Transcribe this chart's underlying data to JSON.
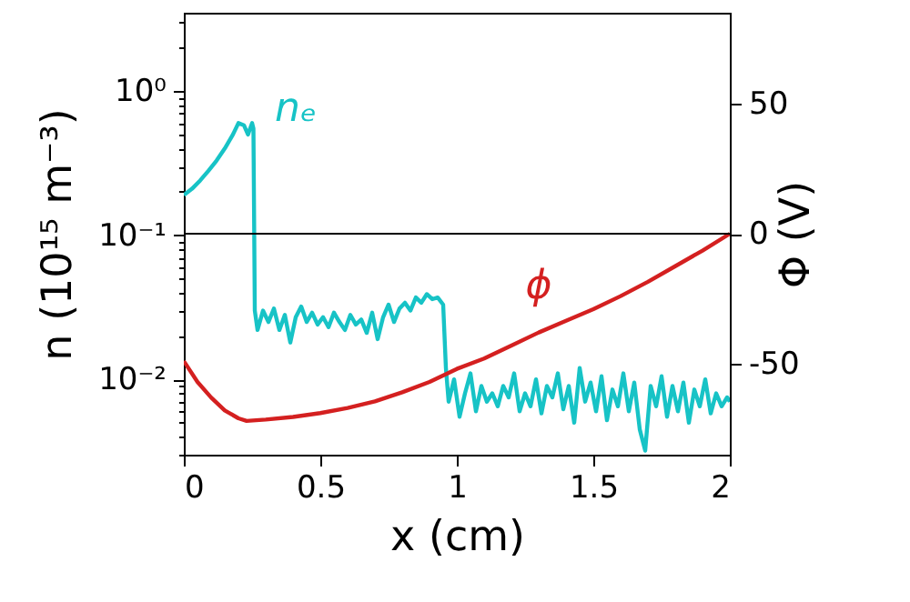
{
  "chart_data": {
    "type": "line",
    "xlabel": "x (cm)",
    "ylabel": "n (10¹⁵ m⁻³)",
    "y2label": "Φ (V)",
    "log": "y",
    "grid": false,
    "xlim": [
      0,
      2
    ],
    "xticks": [
      0,
      0.5,
      1,
      1.5,
      2
    ],
    "ylim": [
      0.003,
      3.5
    ],
    "yticks": [
      {
        "value": 0.003,
        "label": null
      },
      {
        "value": 0.004,
        "label": null
      },
      {
        "value": 0.005,
        "label": null
      },
      {
        "value": 0.006,
        "label": null
      },
      {
        "value": 0.007,
        "label": null
      },
      {
        "value": 0.008,
        "label": null
      },
      {
        "value": 0.009,
        "label": null
      },
      {
        "value": 0.01,
        "label": "10⁻²"
      },
      {
        "value": 0.02,
        "label": null
      },
      {
        "value": 0.03,
        "label": null
      },
      {
        "value": 0.04,
        "label": null
      },
      {
        "value": 0.05,
        "label": null
      },
      {
        "value": 0.06,
        "label": null
      },
      {
        "value": 0.07,
        "label": null
      },
      {
        "value": 0.08,
        "label": null
      },
      {
        "value": 0.09,
        "label": null
      },
      {
        "value": 0.1,
        "label": "10⁻¹"
      },
      {
        "value": 0.2,
        "label": null
      },
      {
        "value": 0.3,
        "label": null
      },
      {
        "value": 0.4,
        "label": null
      },
      {
        "value": 0.5,
        "label": null
      },
      {
        "value": 0.6,
        "label": null
      },
      {
        "value": 0.7,
        "label": null
      },
      {
        "value": 0.8,
        "label": null
      },
      {
        "value": 0.9,
        "label": null
      },
      {
        "value": 1,
        "label": "10⁰"
      },
      {
        "value": 2,
        "label": null
      },
      {
        "value": 3,
        "label": null
      }
    ],
    "y2lim": [
      -85,
      85
    ],
    "y2ticks": [
      -50,
      0,
      50
    ],
    "ref_lines": [
      {
        "axis": "y2",
        "value": 0,
        "color": "#000000"
      }
    ],
    "series": [
      {
        "name": "nₑ",
        "color": "#17c3c6",
        "x": [
          0,
          0.03,
          0.06,
          0.09,
          0.12,
          0.15,
          0.18,
          0.2,
          0.22,
          0.235,
          0.25,
          0.255,
          0.26,
          0.27,
          0.29,
          0.31,
          0.33,
          0.35,
          0.37,
          0.39,
          0.41,
          0.43,
          0.45,
          0.47,
          0.49,
          0.51,
          0.53,
          0.55,
          0.57,
          0.59,
          0.61,
          0.63,
          0.65,
          0.67,
          0.69,
          0.71,
          0.73,
          0.75,
          0.77,
          0.79,
          0.81,
          0.83,
          0.85,
          0.87,
          0.89,
          0.91,
          0.93,
          0.95,
          0.96,
          0.97,
          0.99,
          1.01,
          1.03,
          1.05,
          1.07,
          1.09,
          1.11,
          1.13,
          1.15,
          1.17,
          1.19,
          1.21,
          1.23,
          1.25,
          1.27,
          1.29,
          1.31,
          1.33,
          1.35,
          1.37,
          1.39,
          1.41,
          1.43,
          1.45,
          1.47,
          1.49,
          1.51,
          1.53,
          1.55,
          1.57,
          1.59,
          1.61,
          1.63,
          1.65,
          1.67,
          1.69,
          1.71,
          1.73,
          1.75,
          1.77,
          1.79,
          1.81,
          1.83,
          1.85,
          1.87,
          1.89,
          1.91,
          1.93,
          1.95,
          1.97,
          1.99,
          2.0
        ],
        "values": [
          0.19,
          0.21,
          0.24,
          0.28,
          0.33,
          0.4,
          0.5,
          0.6,
          0.58,
          0.5,
          0.6,
          0.55,
          0.03,
          0.022,
          0.03,
          0.025,
          0.031,
          0.022,
          0.028,
          0.018,
          0.027,
          0.032,
          0.025,
          0.029,
          0.024,
          0.027,
          0.023,
          0.029,
          0.025,
          0.022,
          0.028,
          0.024,
          0.026,
          0.021,
          0.029,
          0.019,
          0.027,
          0.033,
          0.025,
          0.031,
          0.034,
          0.03,
          0.037,
          0.034,
          0.039,
          0.036,
          0.037,
          0.033,
          0.012,
          0.007,
          0.01,
          0.0055,
          0.008,
          0.011,
          0.006,
          0.009,
          0.007,
          0.008,
          0.0065,
          0.009,
          0.0075,
          0.011,
          0.006,
          0.008,
          0.0065,
          0.01,
          0.0058,
          0.009,
          0.0075,
          0.011,
          0.0062,
          0.009,
          0.005,
          0.012,
          0.007,
          0.0095,
          0.006,
          0.0105,
          0.0052,
          0.0085,
          0.0065,
          0.011,
          0.006,
          0.0095,
          0.0045,
          0.0032,
          0.009,
          0.0065,
          0.0105,
          0.0055,
          0.009,
          0.006,
          0.0095,
          0.005,
          0.0085,
          0.0065,
          0.01,
          0.0058,
          0.008,
          0.0065,
          0.0075,
          0.007
        ]
      },
      {
        "name": "ϕ",
        "color": "#d42020",
        "axis": "y2",
        "x": [
          0,
          0.05,
          0.1,
          0.15,
          0.2,
          0.23,
          0.3,
          0.4,
          0.5,
          0.6,
          0.7,
          0.8,
          0.9,
          1.0,
          1.1,
          1.2,
          1.3,
          1.4,
          1.5,
          1.6,
          1.7,
          1.8,
          1.9,
          2.0
        ],
        "values": [
          -49,
          -57,
          -63,
          -68,
          -71,
          -72,
          -71.5,
          -70.5,
          -69,
          -67,
          -64.5,
          -61,
          -57,
          -52,
          -48,
          -43,
          -38,
          -33.5,
          -29,
          -24,
          -18.5,
          -12.5,
          -6.5,
          0
        ]
      }
    ]
  }
}
